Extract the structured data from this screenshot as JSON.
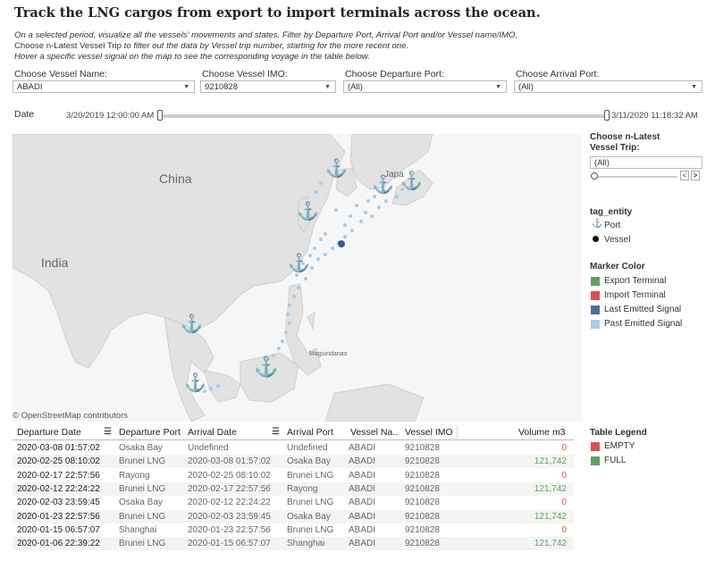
{
  "title": "Track the LNG cargos from export to import terminals across the ocean.",
  "desc": {
    "line1": "On a selected period, visualize all the vessels' movements and states. Filter by Departure Port, Arrival Port and/or Vessel name/IMO.",
    "line2a": "Choose n-Latest Vessel Trip",
    "line2b": " to filter out the data by Vessel trip number, starting for the more recent one.",
    "line3": "Hover a specific vessel signal on the map to see the corresponding voyage in the table below."
  },
  "filters": {
    "vessel_name": {
      "label": "Choose Vessel Name:",
      "value": "ABADI"
    },
    "vessel_imo": {
      "label": "Choose Vessel IMO:",
      "value": "9210828"
    },
    "departure": {
      "label": "Choose Departure Port:",
      "value": "(All)"
    },
    "arrival": {
      "label": "Choose Arrival Port:",
      "value": "(All)"
    }
  },
  "date": {
    "label": "Date",
    "start": "3/20/2019 12:00:00 AM",
    "end": "3/11/2020 11:18:32 AM"
  },
  "map": {
    "labels": {
      "china": "China",
      "india": "India",
      "japan": "Japa",
      "maguindanao": "Maguindanao"
    },
    "attribution": "© OpenStreetMap contributors"
  },
  "trip": {
    "label_line1": "Choose n-Latest",
    "label_line2": "Vessel Trip:",
    "value": "(All)"
  },
  "tag_entity": {
    "title": "tag_entity",
    "port": "Port",
    "vessel": "Vessel"
  },
  "marker_color": {
    "title": "Marker Color",
    "items": [
      {
        "label": "Export Terminal",
        "color": "#5fa05f"
      },
      {
        "label": "Import Terminal",
        "color": "#d9534f"
      },
      {
        "label": "Last Emitted Signal",
        "color": "#4a6f9a"
      },
      {
        "label": "Past Emitted Signal",
        "color": "#a8cbe8"
      }
    ]
  },
  "table_legend": {
    "title": "Table Legend",
    "items": [
      {
        "label": "EMPTY",
        "color": "#d9534f"
      },
      {
        "label": "FULL",
        "color": "#5fa05f"
      }
    ]
  },
  "table": {
    "headers": [
      "Departure Date",
      "Departure Port",
      "Arrival Date",
      "Arrival Port",
      "Vessel Na..",
      "Vessel IMO",
      "Volume m3"
    ],
    "rows": [
      [
        "2020-03-08 01:57:02",
        "Osaka Bay",
        "Undefined",
        "Undefined",
        "ABADI",
        "9210828",
        "0"
      ],
      [
        "2020-02-25 08:10:02",
        "Brunei LNG",
        "2020-03-08 01:57:02",
        "Osaka Bay",
        "ABADI",
        "9210828",
        "121,742"
      ],
      [
        "2020-02-17 22:57:56",
        "Rayong",
        "2020-02-25 08:10:02",
        "Brunei LNG",
        "ABADI",
        "9210828",
        "0"
      ],
      [
        "2020-02-12 22:24:22",
        "Brunei LNG",
        "2020-02-17 22:57:56",
        "Rayong",
        "ABADI",
        "9210828",
        "121,742"
      ],
      [
        "2020-02-03 23:59:45",
        "Osaka Bay",
        "2020-02-12 22:24:22",
        "Brunei LNG",
        "ABADI",
        "9210828",
        "0"
      ],
      [
        "2020-01-23 22:57:56",
        "Brunei LNG",
        "2020-02-03 23:59:45",
        "Osaka Bay",
        "ABADI",
        "9210828",
        "121,742"
      ],
      [
        "2020-01-15 06:57:07",
        "Shanghai",
        "2020-01-23 22:57:56",
        "Brunei LNG",
        "ABADI",
        "9210828",
        "0"
      ],
      [
        "2020-01-06 22:39:22",
        "Brunei LNG",
        "2020-01-15 06:57:07",
        "Shanghai",
        "ABADI",
        "9210828",
        "121,742"
      ]
    ]
  }
}
